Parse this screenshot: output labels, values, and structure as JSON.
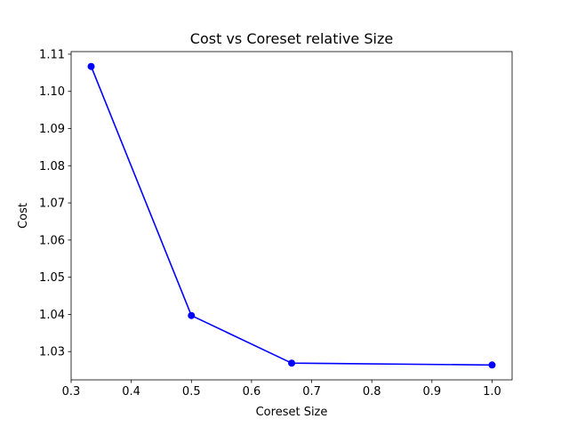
{
  "chart_data": {
    "type": "line",
    "title": "Cost vs Coreset relative Size",
    "xlabel": "Coreset Size",
    "ylabel": "Cost",
    "x": [
      0.3333,
      0.5,
      0.6667,
      1.0
    ],
    "series": [
      {
        "values": [
          1.1067,
          1.0397,
          1.0269,
          1.0264
        ],
        "color": "#0000ff",
        "marker": "circle"
      }
    ],
    "xlim": [
      0.3,
      1.0333
    ],
    "ylim": [
      1.0224,
      1.1107
    ],
    "xticks": [
      0.3,
      0.4,
      0.5,
      0.6,
      0.7,
      0.8,
      0.9,
      1.0
    ],
    "xtick_labels": [
      "0.3",
      "0.4",
      "0.5",
      "0.6",
      "0.7",
      "0.8",
      "0.9",
      "1.0"
    ],
    "yticks": [
      1.03,
      1.04,
      1.05,
      1.06,
      1.07,
      1.08,
      1.09,
      1.1,
      1.11
    ],
    "ytick_labels": [
      "1.03",
      "1.04",
      "1.05",
      "1.06",
      "1.07",
      "1.08",
      "1.09",
      "1.10",
      "1.11"
    ],
    "grid": false,
    "legend": false
  }
}
